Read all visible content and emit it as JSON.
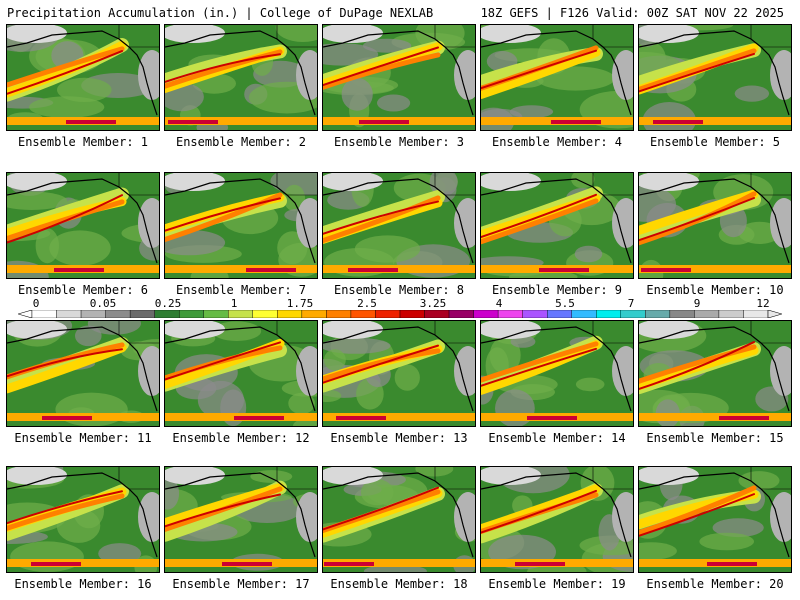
{
  "header": {
    "left": "Precipitation Accumulation (in.) | College of DuPage NEXLAB",
    "right": "18Z GEFS | F126 Valid: 00Z SAT NOV 22 2025"
  },
  "members": [
    {
      "label": "Ensemble Member: 1"
    },
    {
      "label": "Ensemble Member: 2"
    },
    {
      "label": "Ensemble Member: 3"
    },
    {
      "label": "Ensemble Member: 4"
    },
    {
      "label": "Ensemble Member: 5"
    },
    {
      "label": "Ensemble Member: 6"
    },
    {
      "label": "Ensemble Member: 7"
    },
    {
      "label": "Ensemble Member: 8"
    },
    {
      "label": "Ensemble Member: 9"
    },
    {
      "label": "Ensemble Member: 10"
    },
    {
      "label": "Ensemble Member: 11"
    },
    {
      "label": "Ensemble Member: 12"
    },
    {
      "label": "Ensemble Member: 13"
    },
    {
      "label": "Ensemble Member: 14"
    },
    {
      "label": "Ensemble Member: 15"
    },
    {
      "label": "Ensemble Member: 16"
    },
    {
      "label": "Ensemble Member: 17"
    },
    {
      "label": "Ensemble Member: 18"
    },
    {
      "label": "Ensemble Member: 19"
    },
    {
      "label": "Ensemble Member: 20"
    }
  ],
  "colorbar": {
    "ticks": [
      "0",
      "0.05",
      "0.25",
      "1",
      "1.75",
      "2.5",
      "3.25",
      "4",
      "5.5",
      "7",
      "9",
      "12"
    ],
    "colors": [
      "#ffffff",
      "#d9d9d9",
      "#b3b3b3",
      "#8c8c8c",
      "#6b6b6b",
      "#2e7d32",
      "#3f9b3a",
      "#66bb44",
      "#c6e24a",
      "#ffff33",
      "#ffd700",
      "#ffaa00",
      "#ff8000",
      "#ff5500",
      "#ee2200",
      "#cc0000",
      "#aa0022",
      "#990066",
      "#cc00cc",
      "#ee44ee",
      "#aa55ff",
      "#6677ff",
      "#33bbff",
      "#00eeee",
      "#33cccc",
      "#66aaaa",
      "#888888",
      "#aaaaaa",
      "#cccccc",
      "#e8e8e8"
    ]
  },
  "palette": {
    "land": "#3a8a2e",
    "coast": "#000000"
  }
}
